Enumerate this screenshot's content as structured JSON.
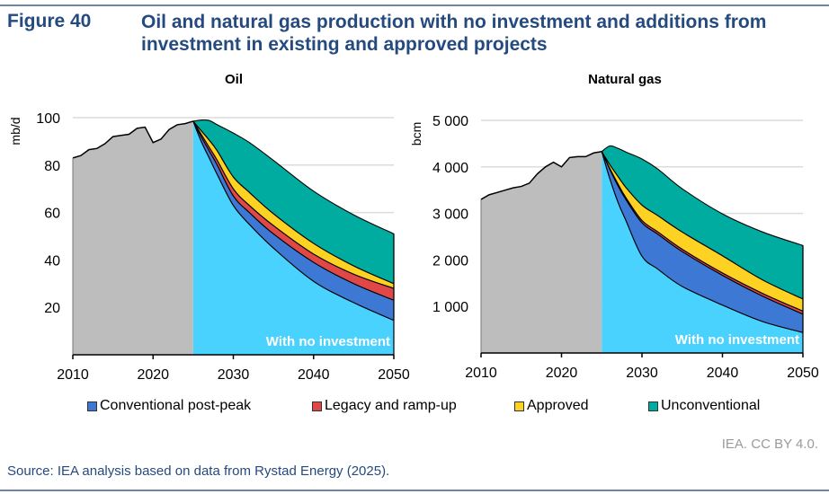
{
  "header": {
    "figure_label": "Figure 40",
    "title": "Oil and natural gas production with no investment and additions from investment in existing and approved projects"
  },
  "colors": {
    "history": "#bdbdbd",
    "no_investment": "#4ad2ff",
    "conventional": "#3d78d4",
    "legacy": "#e04848",
    "approved": "#fdd223",
    "unconventional": "#00ab9f",
    "title": "#254a7f"
  },
  "legend": [
    "Conventional post-peak",
    "Legacy and ramp-up",
    "Approved",
    "Unconventional"
  ],
  "footer": {
    "credit": "IEA. CC BY 4.0.",
    "source": "Source: IEA analysis based on data from Rystad Energy (2025)."
  },
  "chart_data": [
    {
      "type": "area",
      "title": "Oil",
      "ylabel": "mb/d",
      "xlim": [
        2010,
        2050
      ],
      "ylim": [
        0,
        100
      ],
      "xticks": [
        "2010",
        "2020",
        "2030",
        "2040",
        "2050"
      ],
      "yticks": [
        "20",
        "40",
        "60",
        "80",
        "100"
      ],
      "ytick_values": [
        20,
        40,
        60,
        80,
        100
      ],
      "annotation": "With no investment",
      "history": {
        "x": [
          2010,
          2011,
          2012,
          2013,
          2014,
          2015,
          2016,
          2017,
          2018,
          2019,
          2020,
          2021,
          2022,
          2023,
          2024,
          2025
        ],
        "y": [
          83,
          84,
          86.5,
          87,
          89,
          92,
          92.5,
          93,
          95.5,
          96,
          89.5,
          91,
          95,
          97,
          97.5,
          98.5
        ]
      },
      "projection_x": [
        2025,
        2026,
        2027,
        2028,
        2030,
        2032,
        2035,
        2040,
        2045,
        2050
      ],
      "series": [
        {
          "name": "With no investment",
          "values": [
            98.5,
            90,
            83,
            76,
            63,
            55,
            45,
            31,
            22,
            14.5
          ]
        },
        {
          "name": "Conventional post-peak",
          "values": [
            0,
            2,
            3,
            4,
            4,
            5,
            6,
            8,
            8,
            8.5
          ]
        },
        {
          "name": "Legacy and ramp-up",
          "values": [
            0,
            1,
            1.5,
            2,
            3,
            3,
            3.5,
            3.5,
            4,
            5
          ]
        },
        {
          "name": "Approved",
          "values": [
            0,
            1.5,
            3,
            4,
            5,
            5.5,
            5,
            4.5,
            3.5,
            2
          ]
        },
        {
          "name": "Unconventional",
          "values": [
            0,
            4.5,
            8.3,
            11,
            18.5,
            21,
            22.5,
            22,
            21.5,
            21
          ]
        }
      ]
    },
    {
      "type": "area",
      "title": "Natural gas",
      "ylabel": "bcm",
      "xlim": [
        2010,
        2050
      ],
      "ylim": [
        0,
        5000
      ],
      "xticks": [
        "2010",
        "2020",
        "2030",
        "2040",
        "2050"
      ],
      "yticks": [
        "1 000",
        "2 000",
        "3 000",
        "4 000",
        "5 000"
      ],
      "ytick_values": [
        1000,
        2000,
        3000,
        4000,
        5000
      ],
      "annotation": "With no investment",
      "history": {
        "x": [
          2010,
          2011,
          2012,
          2013,
          2014,
          2015,
          2016,
          2017,
          2018,
          2019,
          2020,
          2021,
          2022,
          2023,
          2024,
          2025
        ],
        "y": [
          3300,
          3400,
          3450,
          3500,
          3550,
          3580,
          3650,
          3850,
          4000,
          4100,
          4000,
          4200,
          4220,
          4220,
          4300,
          4330
        ]
      },
      "projection_x": [
        2025,
        2026,
        2027,
        2028,
        2030,
        2032,
        2035,
        2040,
        2045,
        2050
      ],
      "series": [
        {
          "name": "With no investment",
          "values": [
            4330,
            3750,
            3250,
            2850,
            2080,
            1800,
            1430,
            1030,
            675,
            440
          ]
        },
        {
          "name": "Conventional post-peak",
          "values": [
            0,
            200,
            350,
            450,
            720,
            750,
            750,
            640,
            545,
            395
          ]
        },
        {
          "name": "Legacy and ramp-up",
          "values": [
            0,
            20,
            40,
            40,
            50,
            50,
            50,
            50,
            60,
            65
          ]
        },
        {
          "name": "Approved",
          "values": [
            0,
            80,
            160,
            220,
            330,
            350,
            370,
            370,
            290,
            260
          ]
        },
        {
          "name": "Unconventional",
          "values": [
            0,
            400,
            600,
            760,
            990,
            1000,
            930,
            900,
            1030,
            1150
          ]
        }
      ]
    }
  ]
}
